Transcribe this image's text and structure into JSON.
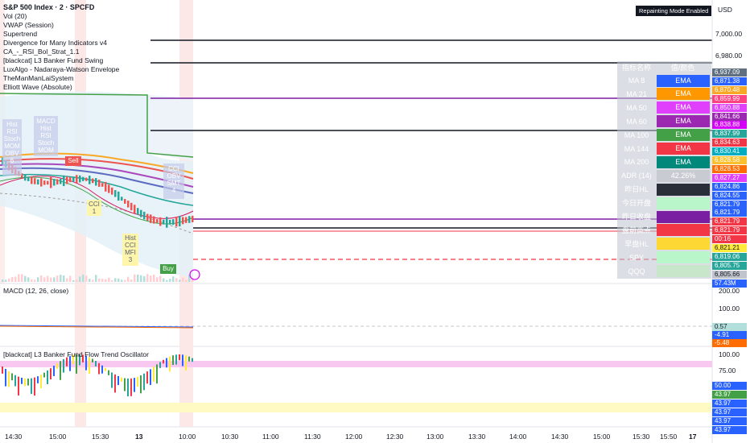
{
  "header": {
    "title": "S&P 500 Index · 2 · SPCFD",
    "repaint_badge": "Repainting Mode Enabled",
    "currency": "USD"
  },
  "indicators": [
    "Vol (20)",
    "VWAP (Session)",
    "Supertrend",
    "Divergence for Many Indicators v4",
    "CA_-_RSI_Bol_Strat_1.1",
    "[blackcat] L3 Banker Fund Swing",
    "LuxAlgo - Nadaraya-Watson Envelope",
    "TheManManLaiSystem",
    "Elliott Wave (Absolute)"
  ],
  "price_axis": {
    "ticks": [
      "7,000.00",
      "6,980.00"
    ]
  },
  "badges": [
    {
      "text": "6,937.09",
      "color": "#607080"
    },
    {
      "text": "6,871.38",
      "color": "#2962ff"
    },
    {
      "text": "6,870.48",
      "color": "#f9a825"
    },
    {
      "text": "6,859.99",
      "color": "#ff4081"
    },
    {
      "text": "6,850.88",
      "color": "#e040fb"
    },
    {
      "text": "6,841.66",
      "color": "#9c27b0"
    },
    {
      "text": "6,838.88",
      "color": "#d500f9"
    },
    {
      "text": "6,837.99",
      "color": "#26a69a"
    },
    {
      "text": "6,834.63",
      "color": "#f23645"
    },
    {
      "text": "6,830.41",
      "color": "#00acc1"
    },
    {
      "text": "6,828.58",
      "color": "#fbc02d"
    },
    {
      "text": "6,828.53",
      "color": "#ff6d00"
    },
    {
      "text": "6,827.27",
      "color": "#e040fb"
    },
    {
      "text": "6,824.86",
      "color": "#2962ff"
    },
    {
      "text": "6,824.55",
      "color": "#2962ff"
    },
    {
      "text": "6,821.79",
      "color": "#2962ff"
    },
    {
      "text": "6,821.79",
      "color": "#2962ff"
    },
    {
      "text": "6,821.79",
      "color": "#f23645"
    },
    {
      "text": "6,821.79",
      "color": "#f23645"
    },
    {
      "text": "00:16",
      "color": "#f23645"
    },
    {
      "text": "6,821.21",
      "color": "#ffeb3b"
    },
    {
      "text": "6,819.06",
      "color": "#26a69a"
    },
    {
      "text": "6,805.75",
      "color": "#26a69a"
    },
    {
      "text": "6,805.66",
      "color": "#c0c4cc"
    },
    {
      "text": "57.43M",
      "color": "#2962ff"
    }
  ],
  "ma_table": {
    "headers": [
      "指标名称",
      "值/颜色"
    ],
    "rows": [
      {
        "label": "MA 8",
        "value": "EMA",
        "color": "#2962ff"
      },
      {
        "label": "MA 21",
        "value": "EMA",
        "color": "#ff9800"
      },
      {
        "label": "MA 50",
        "value": "EMA",
        "color": "#e040fb"
      },
      {
        "label": "MA 60",
        "value": "EMA",
        "color": "#9c27b0"
      },
      {
        "label": "MA 100",
        "value": "EMA",
        "color": "#43a047"
      },
      {
        "label": "MA 144",
        "value": "EMA",
        "color": "#f23645"
      },
      {
        "label": "MA 200",
        "value": "EMA",
        "color": "#00897b"
      },
      {
        "label": "ADR (14)",
        "value": "42.26%",
        "color": "#c8cbd2"
      },
      {
        "label": "昨日HL",
        "value": "",
        "color": "#2a2e39"
      },
      {
        "label": "今日开盘",
        "value": "",
        "color": "#b9f6ca"
      },
      {
        "label": "昨日收盘",
        "value": "",
        "color": "#7b1fa2"
      },
      {
        "label": "盘前高点",
        "value": "",
        "color": "#f23645"
      },
      {
        "label": "早盘HL",
        "value": "",
        "color": "#fdd835"
      },
      {
        "label": "SPY",
        "value": "",
        "color": "#b9f6ca"
      },
      {
        "label": "QQQ",
        "value": "",
        "color": "#c8e6c9"
      }
    ]
  },
  "chart_markers": {
    "sell": "Sell",
    "buy": "Buy",
    "cci_1": "CCI\n1",
    "hist_cci_mfi": "Hist\nCCI\nMFI\n3",
    "div_left": "Hist\nRSI\nStoch\nMOM\nOBV\n6",
    "div_macd": "MACD\nHist\nRSI\nStoch\nMOM",
    "div_right": "CCI\nOBV\nSMT\n4"
  },
  "macd": {
    "title": "MACD (12, 26, close)",
    "ticks": [
      "200.00",
      "100.00"
    ],
    "badges": [
      {
        "text": "0.57",
        "color": "#b2dfdb",
        "fg": "#131722"
      },
      {
        "text": "-4.91",
        "color": "#2962ff",
        "fg": "#ffffff"
      },
      {
        "text": "-5.48",
        "color": "#ff6d00",
        "fg": "#ffffff"
      }
    ]
  },
  "osc": {
    "title": "[blackcat] L3 Banker Fund Flow Trend Oscillator",
    "ticks": [
      "100.00",
      "75.00"
    ],
    "badges": [
      {
        "text": "50.00",
        "color": "#2962ff"
      },
      {
        "text": "43.97",
        "color": "#43a047"
      },
      {
        "text": "43.97",
        "color": "#2962ff"
      },
      {
        "text": "43.97",
        "color": "#2962ff"
      },
      {
        "text": "43.97",
        "color": "#2962ff"
      },
      {
        "text": "43.97",
        "color": "#2962ff"
      }
    ]
  },
  "time_axis": [
    "14:30",
    "15:00",
    "15:30",
    "13",
    "10:00",
    "10:30",
    "11:00",
    "11:30",
    "12:00",
    "12:30",
    "13:00",
    "13:30",
    "14:00",
    "14:30",
    "15:00",
    "15:30",
    "15:50",
    "17"
  ]
}
